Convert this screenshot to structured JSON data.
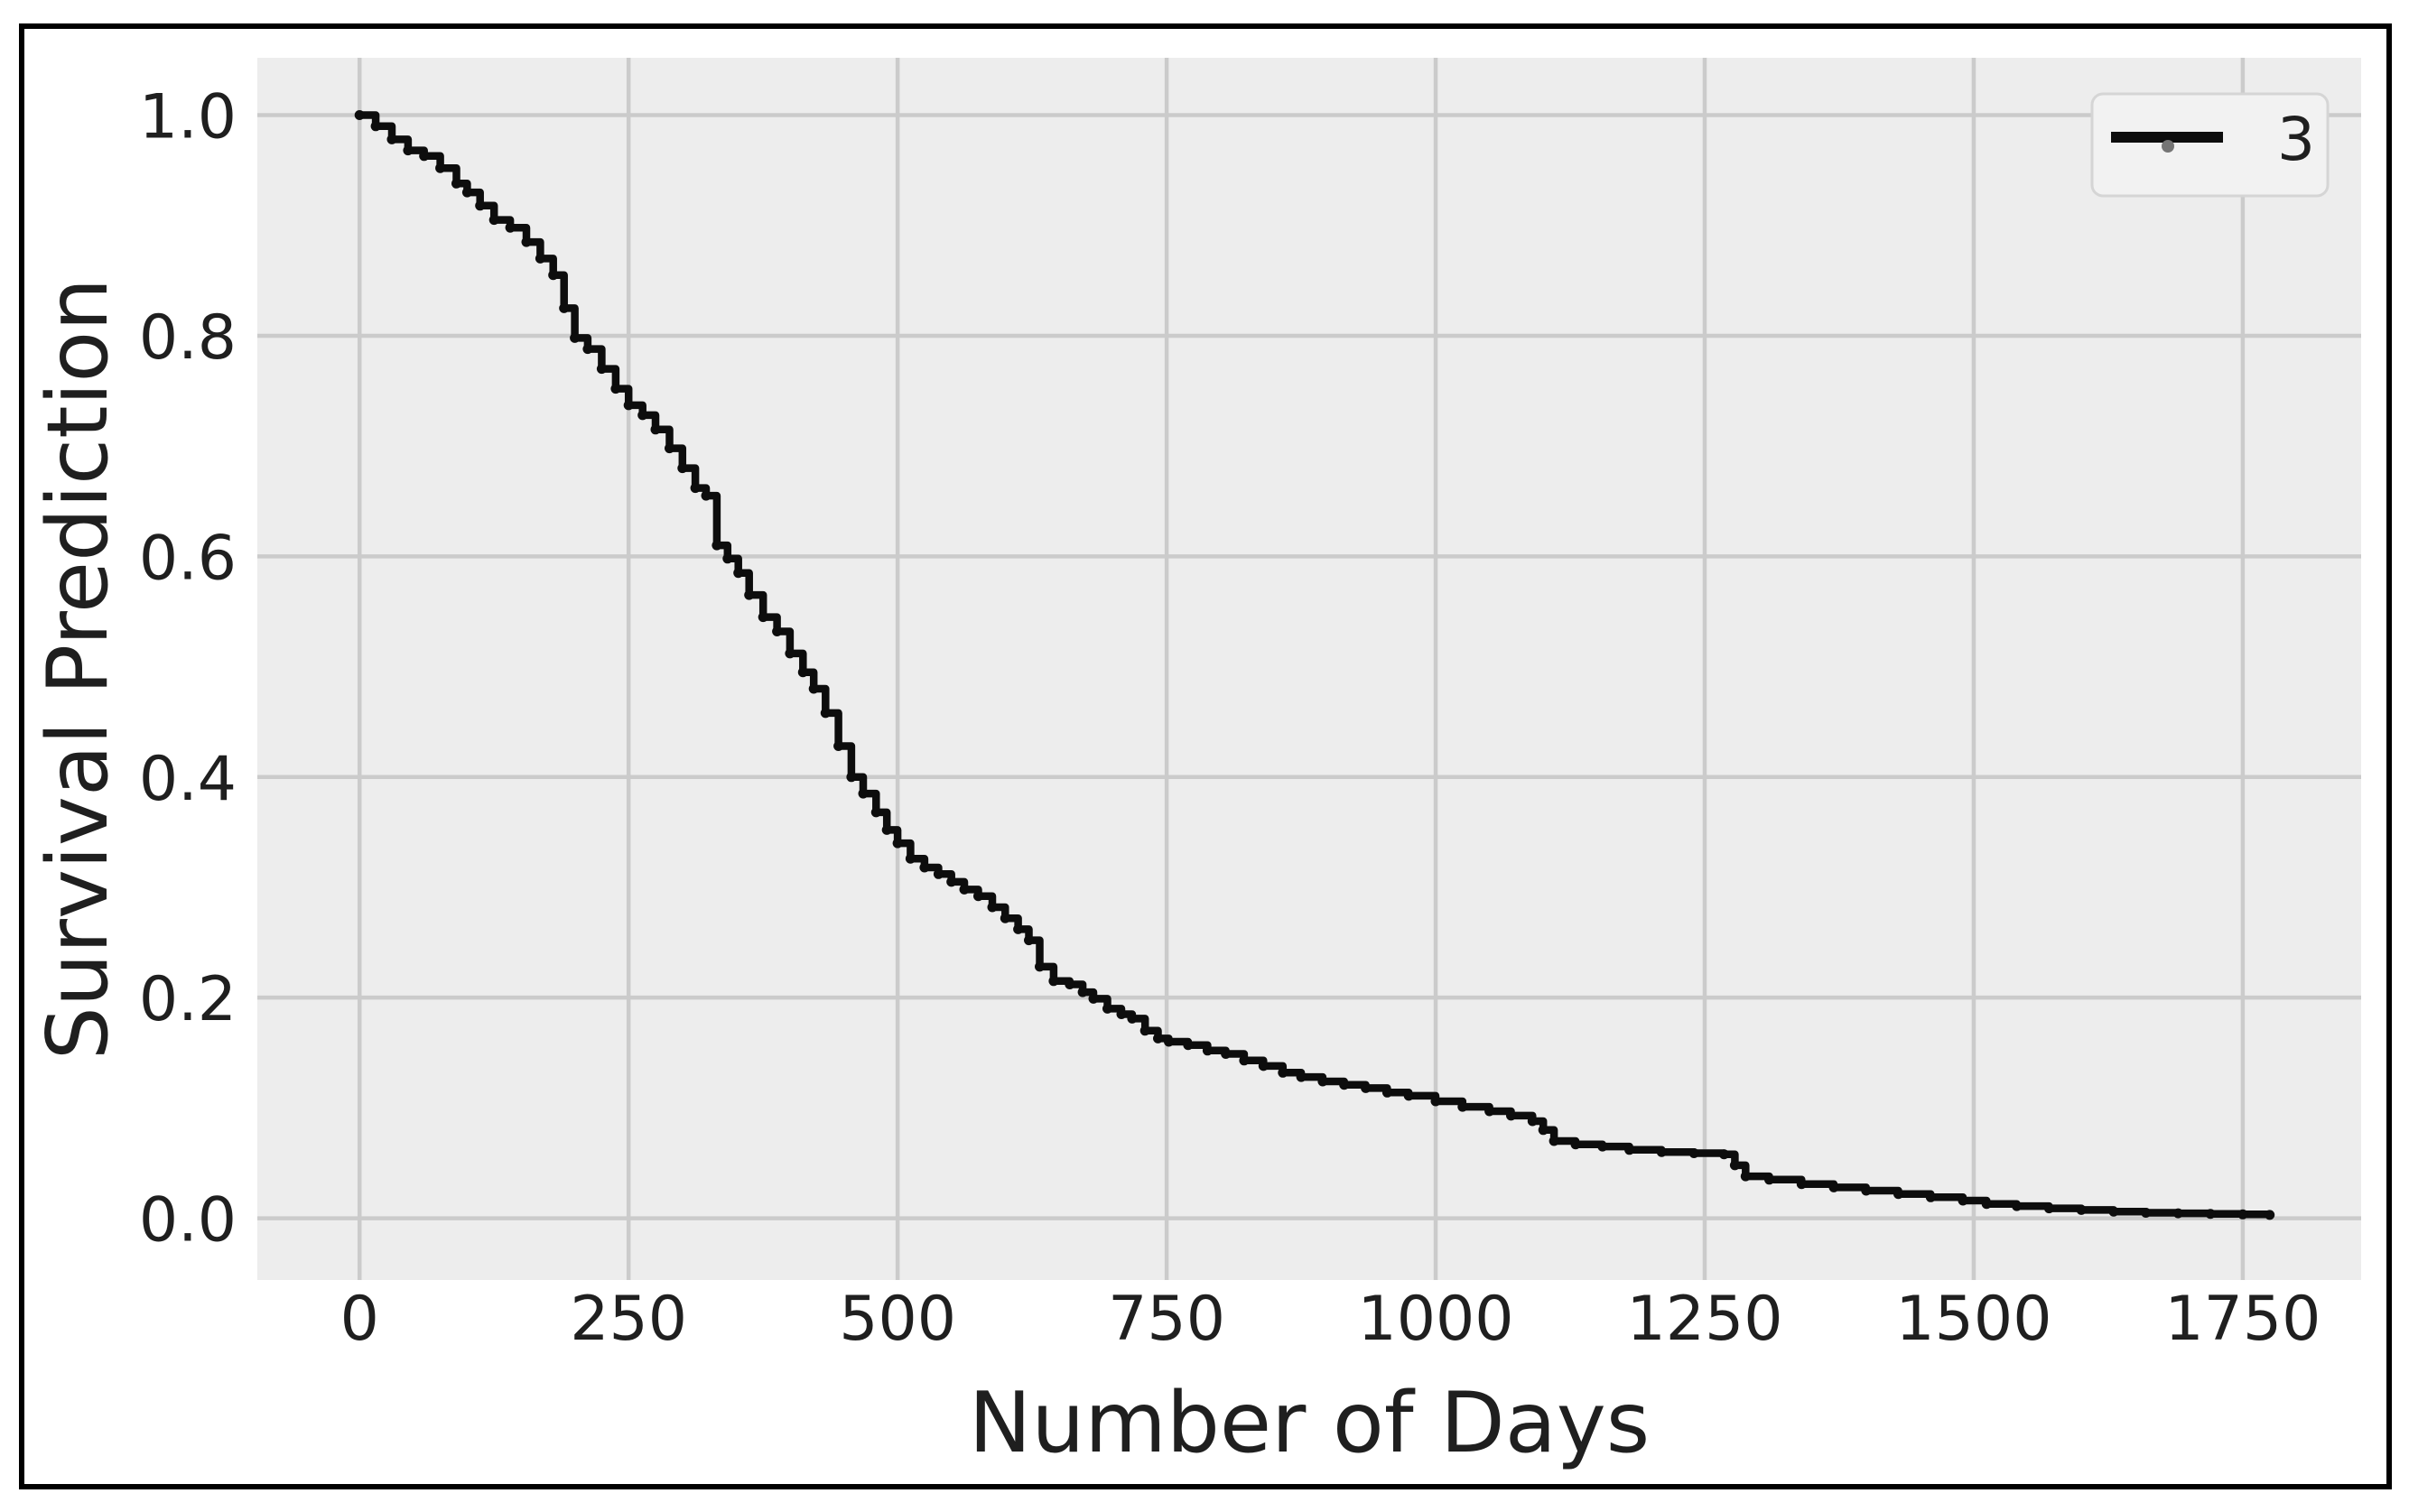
{
  "figure": {
    "background": "#ffffff",
    "frame_color": "#000000"
  },
  "chart_data": {
    "type": "line",
    "subtype": "survival-step-curve",
    "title": "",
    "xlabel": "Number of Days",
    "ylabel": "Survival Prediction",
    "xlim": [
      -95,
      1860
    ],
    "ylim": [
      -0.056,
      1.052
    ],
    "x_ticks": [
      0,
      250,
      500,
      750,
      1000,
      1250,
      1500,
      1750
    ],
    "x_tick_labels": [
      "0",
      "250",
      "500",
      "750",
      "1000",
      "1250",
      "1500",
      "1750"
    ],
    "y_ticks": [
      0.0,
      0.2,
      0.4,
      0.6,
      0.8,
      1.0
    ],
    "y_tick_labels": [
      "0.0",
      "0.2",
      "0.4",
      "0.6",
      "0.8",
      "1.0"
    ],
    "grid": true,
    "legend": {
      "position": "upper right",
      "entries": [
        {
          "label": "3",
          "color": "#0d0d0d"
        }
      ]
    },
    "colors": {
      "axes_background": "#ededed",
      "grid": "#cbcbcb",
      "line": "#0d0d0d",
      "text": "#1f1f1f",
      "legend_background": "#f2f2f2",
      "legend_border": "#d5d5d5",
      "legend_marker": "#757575"
    },
    "series": [
      {
        "name": "3",
        "draw_style": "steps-post",
        "marker": "point",
        "x": [
          0,
          15,
          30,
          45,
          60,
          75,
          90,
          100,
          112,
          125,
          140,
          155,
          168,
          180,
          190,
          200,
          212,
          225,
          238,
          250,
          263,
          275,
          288,
          300,
          312,
          322,
          332,
          342,
          352,
          362,
          375,
          388,
          400,
          412,
          422,
          433,
          445,
          457,
          468,
          480,
          490,
          500,
          512,
          525,
          538,
          550,
          562,
          575,
          588,
          600,
          612,
          622,
          632,
          645,
          660,
          672,
          682,
          695,
          708,
          718,
          730,
          742,
          752,
          770,
          788,
          805,
          822,
          840,
          858,
          875,
          895,
          915,
          935,
          955,
          975,
          1000,
          1025,
          1050,
          1070,
          1090,
          1100,
          1110,
          1130,
          1155,
          1180,
          1210,
          1240,
          1268,
          1278,
          1288,
          1310,
          1340,
          1370,
          1400,
          1430,
          1460,
          1490,
          1512,
          1540,
          1570,
          1600,
          1630,
          1660,
          1690,
          1720,
          1750,
          1775
        ],
        "y": [
          1.0,
          0.99,
          0.978,
          0.968,
          0.963,
          0.952,
          0.938,
          0.93,
          0.918,
          0.905,
          0.898,
          0.885,
          0.87,
          0.855,
          0.825,
          0.798,
          0.788,
          0.77,
          0.752,
          0.737,
          0.728,
          0.715,
          0.698,
          0.68,
          0.662,
          0.655,
          0.61,
          0.598,
          0.585,
          0.565,
          0.545,
          0.532,
          0.512,
          0.495,
          0.48,
          0.458,
          0.428,
          0.4,
          0.385,
          0.368,
          0.352,
          0.34,
          0.326,
          0.318,
          0.312,
          0.305,
          0.298,
          0.292,
          0.282,
          0.272,
          0.262,
          0.252,
          0.228,
          0.215,
          0.212,
          0.205,
          0.199,
          0.19,
          0.185,
          0.181,
          0.17,
          0.163,
          0.16,
          0.157,
          0.152,
          0.149,
          0.143,
          0.138,
          0.132,
          0.128,
          0.124,
          0.121,
          0.118,
          0.114,
          0.111,
          0.106,
          0.101,
          0.097,
          0.093,
          0.088,
          0.08,
          0.07,
          0.067,
          0.065,
          0.062,
          0.06,
          0.059,
          0.058,
          0.048,
          0.038,
          0.035,
          0.031,
          0.028,
          0.025,
          0.022,
          0.019,
          0.016,
          0.013,
          0.011,
          0.009,
          0.0075,
          0.006,
          0.005,
          0.0045,
          0.004,
          0.0035,
          0.003
        ]
      }
    ]
  }
}
